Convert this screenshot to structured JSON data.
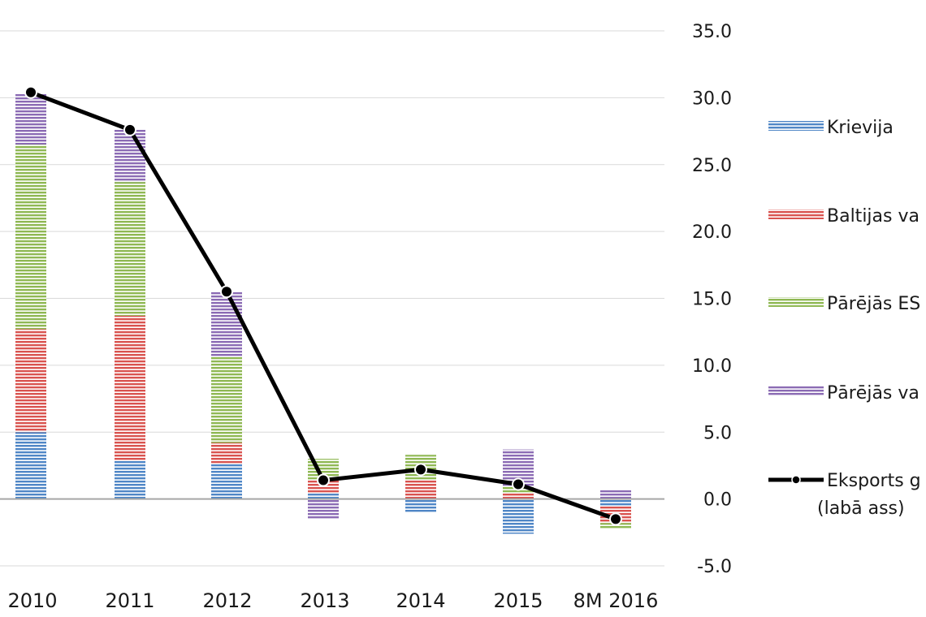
{
  "chart_data": {
    "type": "bar",
    "stacked": true,
    "categories": [
      "2010",
      "2011",
      "2012",
      "2013",
      "2014",
      "2015",
      "8M 2016"
    ],
    "series": [
      {
        "name": "Krievija",
        "color": "#4f86c6",
        "values": [
          5.0,
          2.9,
          2.6,
          0.4,
          -1.0,
          -2.6,
          -0.5
        ]
      },
      {
        "name": "Baltijas va",
        "color": "#d9534f",
        "values": [
          7.7,
          10.8,
          1.6,
          1.0,
          1.4,
          0.5,
          -1.3
        ]
      },
      {
        "name": "Pārējās ES",
        "color": "#8fb853",
        "values": [
          13.8,
          10.0,
          6.4,
          1.6,
          1.9,
          0.4,
          -0.4
        ]
      },
      {
        "name": "Pārējās va",
        "color": "#8b6bb4",
        "values": [
          3.8,
          3.9,
          4.9,
          -1.5,
          0,
          2.8,
          0.7
        ]
      }
    ],
    "line_series": {
      "name": "Eksports g",
      "name_line2": "(labā ass)",
      "color": "#000000",
      "values": [
        30.4,
        27.6,
        15.5,
        1.4,
        2.2,
        1.1,
        -1.5
      ]
    },
    "y_ticks": [
      "35.0",
      "30.0",
      "25.0",
      "20.0",
      "15.0",
      "10.0",
      "5.0",
      "0.0",
      "-5.0"
    ],
    "ylim": [
      -5,
      35
    ],
    "grid": true,
    "legend_position": "right"
  }
}
